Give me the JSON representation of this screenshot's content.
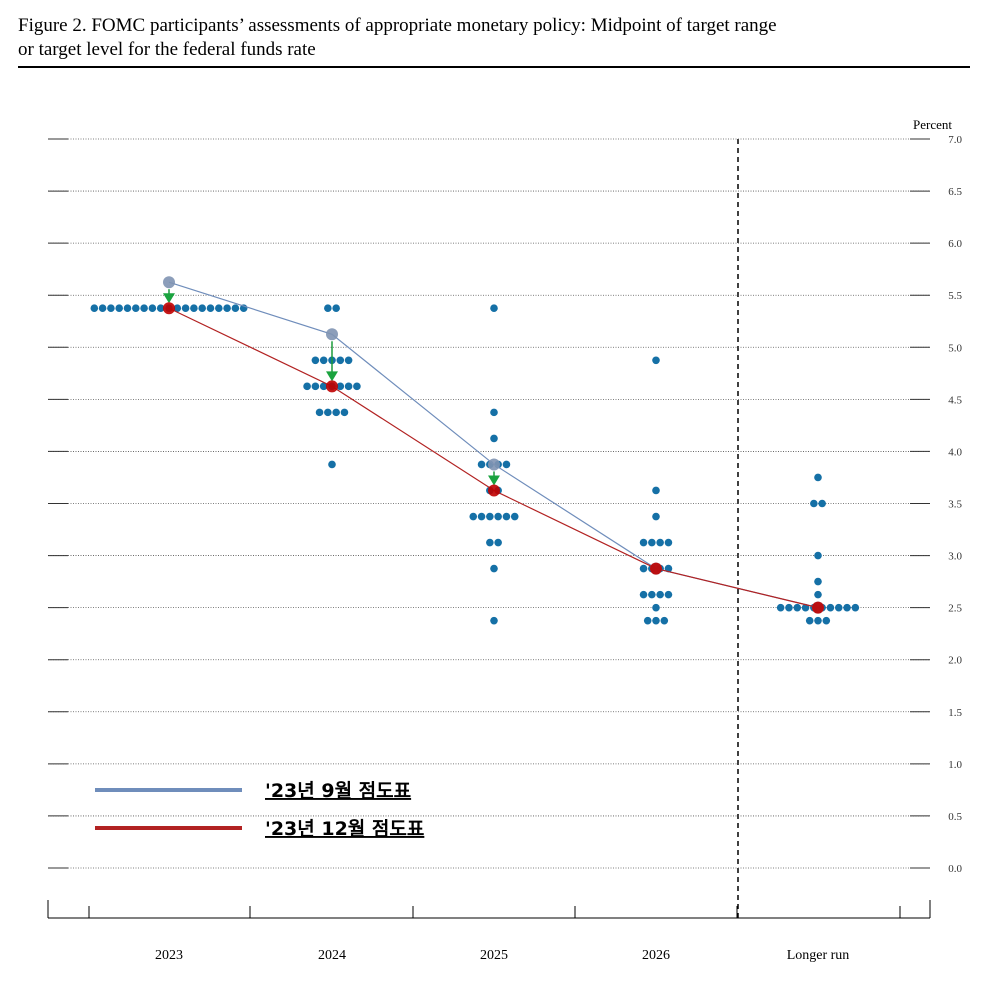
{
  "chart_data": {
    "type": "dotplot",
    "title": "Figure 2.  FOMC participants’ assessments of appropriate monetary policy: Midpoint of target range",
    "subtitle": "or target level for the federal funds rate",
    "y_label": "Percent",
    "categories": [
      "2023",
      "2024",
      "2025",
      "2026",
      "Longer run"
    ],
    "dots": [
      [
        5.375,
        5.375,
        5.375,
        5.375,
        5.375,
        5.375,
        5.375,
        5.375,
        5.375,
        5.375,
        5.375,
        5.375,
        5.375,
        5.375,
        5.375,
        5.375,
        5.375,
        5.375,
        5.375
      ],
      [
        5.375,
        5.375,
        4.875,
        4.875,
        4.875,
        4.875,
        4.875,
        4.625,
        4.625,
        4.625,
        4.625,
        4.625,
        4.625,
        4.625,
        4.375,
        4.375,
        4.375,
        4.375,
        3.875
      ],
      [
        5.375,
        4.375,
        4.125,
        3.875,
        3.875,
        3.875,
        3.875,
        3.625,
        3.625,
        3.375,
        3.375,
        3.375,
        3.375,
        3.375,
        3.375,
        3.125,
        3.125,
        2.875,
        2.375
      ],
      [
        4.875,
        3.625,
        3.375,
        3.125,
        3.125,
        3.125,
        3.125,
        2.875,
        2.875,
        2.875,
        2.875,
        2.625,
        2.625,
        2.625,
        2.625,
        2.5,
        2.375,
        2.375,
        2.375
      ],
      [
        3.75,
        3.5,
        3.5,
        3.0,
        2.75,
        2.625,
        2.5,
        2.5,
        2.5,
        2.5,
        2.5,
        2.5,
        2.5,
        2.5,
        2.5,
        2.5,
        2.375,
        2.375,
        2.375
      ]
    ],
    "dot_color": "#1570a6",
    "series": [
      {
        "name": "'23년 9월 점도표",
        "color": "#6f8dbb",
        "marker_color": "#7f93b3",
        "values": [
          5.625,
          5.125,
          3.875,
          2.875,
          2.5
        ]
      },
      {
        "name": "'23년 12월 점도표",
        "color": "#b22222",
        "marker_color": "#c00000",
        "values": [
          5.375,
          4.625,
          3.625,
          2.875,
          2.5
        ]
      }
    ],
    "ylim": [
      0,
      7
    ],
    "yticks": [
      {
        "value": 0,
        "label": "0.0"
      },
      0.5,
      {
        "value": 1,
        "label": "1.0"
      },
      1.5,
      {
        "value": 2,
        "label": "2.0"
      },
      2.5,
      {
        "value": 3,
        "label": "3.0"
      },
      3.5,
      {
        "value": 4,
        "label": "4.0"
      },
      4.5,
      {
        "value": 5,
        "label": "5.0"
      },
      5.5,
      {
        "value": 6,
        "label": "6.0"
      },
      6.5,
      {
        "value": 7,
        "label": "7.0"
      }
    ],
    "grid": true
  }
}
